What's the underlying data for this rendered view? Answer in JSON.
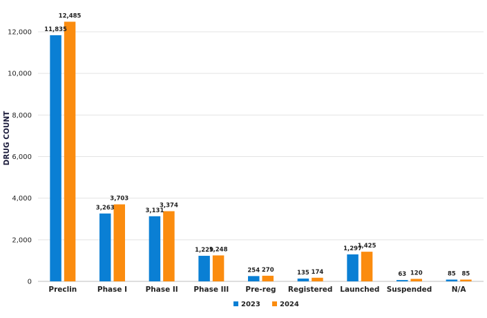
{
  "chart_data": {
    "type": "bar",
    "title": "",
    "xlabel": "",
    "ylabel": "DRUG COUNT",
    "ylim": [
      0,
      12000
    ],
    "yticks": [
      0,
      2000,
      4000,
      6000,
      8000,
      10000,
      12000
    ],
    "ytick_labels": [
      "0",
      "2,000",
      "4,000",
      "6,000",
      "8,000",
      "10,000",
      "12,000"
    ],
    "grid": true,
    "legend_position": "bottom-center",
    "categories": [
      "Preclin",
      "Phase I",
      "Phase II",
      "Phase III",
      "Pre-reg",
      "Registered",
      "Launched",
      "Suspended",
      "N/A"
    ],
    "series": [
      {
        "name": "2023",
        "color": "#0a7fd4",
        "values": [
          11835,
          3263,
          3131,
          1229,
          254,
          135,
          1297,
          63,
          85
        ],
        "labels": [
          "11,835",
          "3,263",
          "3,131",
          "1,229",
          "254",
          "135",
          "1,297",
          "63",
          "85"
        ]
      },
      {
        "name": "2024",
        "color": "#fb8c0f",
        "values": [
          12485,
          3703,
          3374,
          1248,
          270,
          174,
          1425,
          120,
          85
        ],
        "labels": [
          "12,485",
          "3,703",
          "3,374",
          "1,248",
          "270",
          "174",
          "1,425",
          "120",
          "85"
        ]
      }
    ]
  }
}
